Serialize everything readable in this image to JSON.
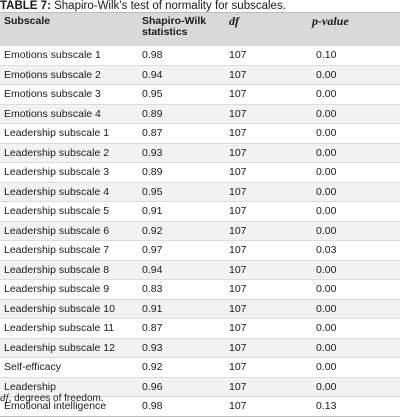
{
  "caption": {
    "label": "TABLE 7:",
    "text": "Shapiro-Wilk’s test of normality for subscales."
  },
  "table": {
    "headers": {
      "subscale": "Subscale",
      "statistics": "Shapiro-Wilk statistics",
      "df": "df",
      "p_value": "p-value"
    },
    "rows": [
      {
        "subscale": "Emotions subscale 1",
        "statistic": "0.98",
        "df": "107",
        "p": "0.10"
      },
      {
        "subscale": "Emotions subscale 2",
        "statistic": "0.94",
        "df": "107",
        "p": "0.00"
      },
      {
        "subscale": "Emotions subscale 3",
        "statistic": "0.95",
        "df": "107",
        "p": "0.00"
      },
      {
        "subscale": "Emotions subscale 4",
        "statistic": "0.89",
        "df": "107",
        "p": "0.00"
      },
      {
        "subscale": "Leadership subscale 1",
        "statistic": "0.87",
        "df": "107",
        "p": "0.00"
      },
      {
        "subscale": "Leadership subscale 2",
        "statistic": "0.93",
        "df": "107",
        "p": "0.00"
      },
      {
        "subscale": "Leadership subscale 3",
        "statistic": "0.89",
        "df": "107",
        "p": "0.00"
      },
      {
        "subscale": "Leadership subscale 4",
        "statistic": "0.95",
        "df": "107",
        "p": "0.00"
      },
      {
        "subscale": "Leadership subscale 5",
        "statistic": "0.91",
        "df": "107",
        "p": "0.00"
      },
      {
        "subscale": "Leadership subscale 6",
        "statistic": "0.92",
        "df": "107",
        "p": "0.00"
      },
      {
        "subscale": "Leadership subscale 7",
        "statistic": "0.97",
        "df": "107",
        "p": "0.03"
      },
      {
        "subscale": "Leadership subscale 8",
        "statistic": "0.94",
        "df": "107",
        "p": "0.00"
      },
      {
        "subscale": "Leadership subscale 9",
        "statistic": "0.83",
        "df": "107",
        "p": "0.00"
      },
      {
        "subscale": "Leadership subscale 10",
        "statistic": "0.91",
        "df": "107",
        "p": "0.00"
      },
      {
        "subscale": "Leadership subscale 11",
        "statistic": "0.87",
        "df": "107",
        "p": "0.00"
      },
      {
        "subscale": "Leadership subscale 12",
        "statistic": "0.93",
        "df": "107",
        "p": "0.00"
      },
      {
        "subscale": "Self-efficacy",
        "statistic": "0.92",
        "df": "107",
        "p": "0.00"
      },
      {
        "subscale": "Leadership",
        "statistic": "0.96",
        "df": "107",
        "p": "0.00"
      },
      {
        "subscale": "Emotional intelligence",
        "statistic": "0.98",
        "df": "107",
        "p": "0.13"
      }
    ]
  },
  "footnote": {
    "abbr": "df",
    "text": ", degrees of freedom."
  }
}
